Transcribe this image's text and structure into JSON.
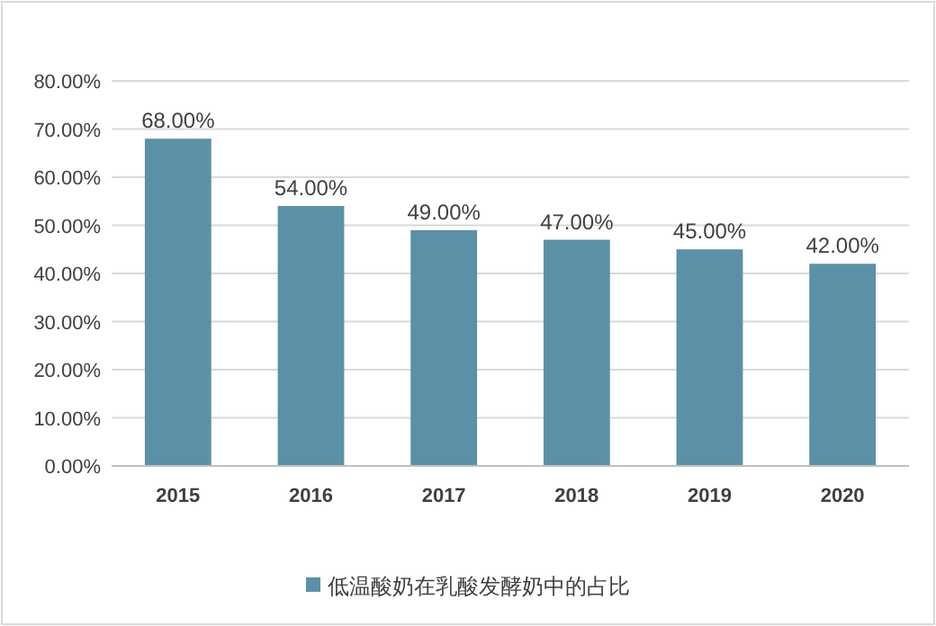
{
  "chart_data": {
    "type": "bar",
    "categories": [
      "2015",
      "2016",
      "2017",
      "2018",
      "2019",
      "2020"
    ],
    "series": [
      {
        "name": "低温酸奶在乳酸发酵奶中的占比",
        "color": "#5b90a6",
        "values": [
          68,
          54,
          49,
          47,
          45,
          42
        ]
      }
    ],
    "value_labels": [
      "68.00%",
      "54.00%",
      "49.00%",
      "47.00%",
      "45.00%",
      "42.00%"
    ],
    "ylim": [
      0,
      80
    ],
    "yticks": [
      {
        "value": 0,
        "label": "0.00%"
      },
      {
        "value": 10,
        "label": "10.00%"
      },
      {
        "value": 20,
        "label": "20.00%"
      },
      {
        "value": 30,
        "label": "30.00%"
      },
      {
        "value": 40,
        "label": "40.00%"
      },
      {
        "value": 50,
        "label": "50.00%"
      },
      {
        "value": 60,
        "label": "60.00%"
      },
      {
        "value": 70,
        "label": "70.00%"
      },
      {
        "value": 80,
        "label": "80.00%"
      }
    ],
    "grid": "y",
    "legend": "bottom"
  }
}
